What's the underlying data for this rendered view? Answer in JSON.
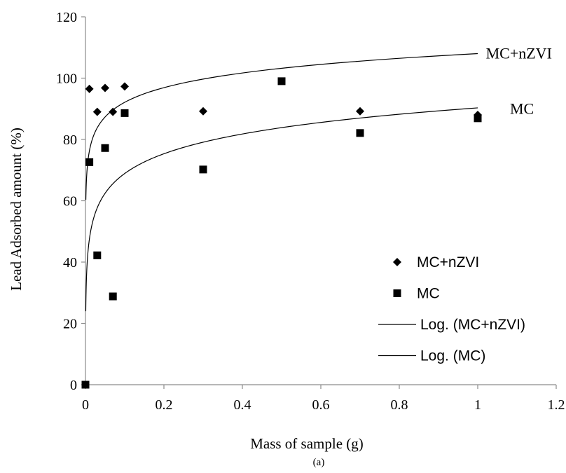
{
  "chart_data": {
    "type": "scatter",
    "title": "",
    "xlabel": "Mass of sample (g)",
    "ylabel": "Lead Adsorbed amount (%)",
    "caption": "(a)",
    "xlim": [
      0,
      1.2
    ],
    "ylim": [
      0,
      120
    ],
    "x_ticks": [
      "0",
      "0.2",
      "0.4",
      "0.6",
      "0.8",
      "1",
      "1.2"
    ],
    "y_ticks": [
      "0",
      "20",
      "40",
      "60",
      "80",
      "100",
      "120"
    ],
    "grid": false,
    "legend_position": "right",
    "series": [
      {
        "name": "MC+nZVI",
        "marker": "diamond",
        "x": [
          0.01,
          0.03,
          0.05,
          0.07,
          0.1,
          0.3,
          0.7,
          1.0
        ],
        "y": [
          96.5,
          89.0,
          96.8,
          89.0,
          97.3,
          89.2,
          89.2,
          88.0
        ]
      },
      {
        "name": "MC",
        "marker": "square",
        "x": [
          0.0,
          0.01,
          0.03,
          0.05,
          0.07,
          0.1,
          0.3,
          0.5,
          0.7,
          1.0
        ],
        "y": [
          0.0,
          72.6,
          42.2,
          77.2,
          28.8,
          88.6,
          70.2,
          99.0,
          82.1,
          86.9
        ]
      }
    ],
    "trendlines": [
      {
        "name": "Log. (MC+nZVI)",
        "type": "logarithmic",
        "slope": 6.9,
        "intercept": 108,
        "x_range": [
          0.001,
          1.0
        ]
      },
      {
        "name": "Log. (MC)",
        "type": "logarithmic",
        "slope": 9.3,
        "intercept": 90.3,
        "x_range": [
          0.0008,
          1.0
        ]
      }
    ],
    "annotations": [
      {
        "text": "MC+nZVI",
        "x": 1.01,
        "y": 108
      },
      {
        "text": "MC",
        "x": 1.05,
        "y": 90
      }
    ],
    "legend": [
      {
        "label": "MC+nZVI",
        "marker": "diamond"
      },
      {
        "label": "MC",
        "marker": "square"
      },
      {
        "label": "Log. (MC+nZVI)",
        "marker": "line"
      },
      {
        "label": "Log. (MC)",
        "marker": "line"
      }
    ],
    "colors": {
      "points": "#000000",
      "lines": "#000000",
      "axis": "#8c8c8c"
    }
  }
}
